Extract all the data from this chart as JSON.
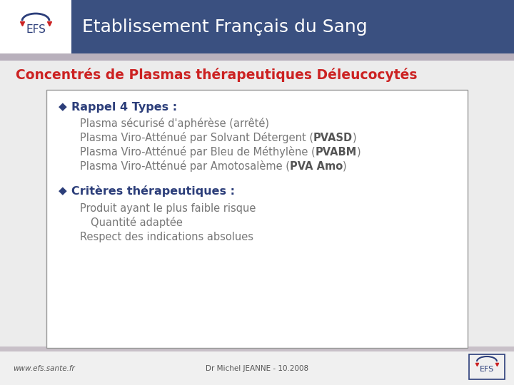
{
  "header_bg_color": "#3a5080",
  "header_stripe_color": "#b8b0bc",
  "header_white_box_color": "#ffffff",
  "header_title": "Etablissement Français du Sang",
  "header_title_color": "#ffffff",
  "header_title_fontsize": 18,
  "slide_bg_color": "#ececec",
  "main_bg_color": "#ffffff",
  "page_title": "Concentrés de Plasmas thérapeutiques Déleucocytés",
  "page_title_color": "#cc2222",
  "page_title_fontsize": 13.5,
  "box_border_color": "#999999",
  "box_bg_color": "#ffffff",
  "bullet_color": "#2c3e7a",
  "bullet_char": "◆",
  "section1_heading": "Rappel 4 Types :",
  "section1_color": "#2c3e7a",
  "section1_fontsize": 11.5,
  "items1_plain": [
    "Plasma sécurisé d'aphérèse (arrêté)",
    "Plasma Viro-Atténué par Solvant Détergent (",
    "Plasma Viro-Atténué par Bleu de Méthylène (",
    "Plasma Viro-Atténué par Amotosalème ("
  ],
  "items1_bold": [
    "",
    "PVASD",
    "PVABM",
    "PVA Amo"
  ],
  "items1_suffix": [
    "",
    ")",
    ")",
    ")"
  ],
  "items1_color": "#777777",
  "items1_bold_color": "#555555",
  "items1_fontsize": 10.5,
  "section2_heading": "Critères thérapeutiques :",
  "section2_color": "#2c3e7a",
  "section2_fontsize": 11.5,
  "items2": [
    "Produit ayant le plus faible risque",
    "Quantité adaptée",
    "Respect des indications absolues"
  ],
  "items2_indent": [
    0,
    15,
    0
  ],
  "items2_color": "#777777",
  "items2_fontsize": 10.5,
  "footer_bg_color": "#f0f0f0",
  "footer_stripe_color": "#c8c0c8",
  "footer_left": "www.efs.sante.fr",
  "footer_center": "Dr Michel JEANNE - 10.2008",
  "footer_color": "#555555",
  "footer_fontsize": 7.5
}
